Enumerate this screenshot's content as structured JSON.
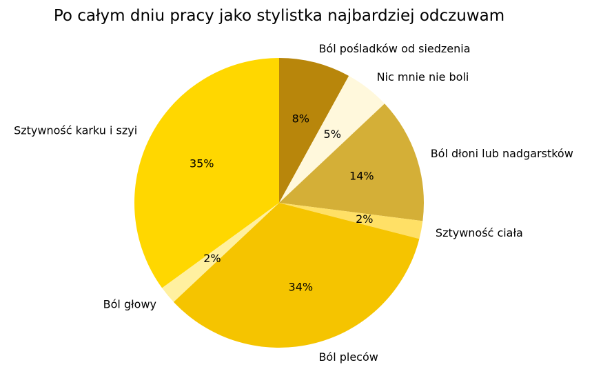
{
  "chart_data": {
    "type": "pie",
    "title": "Po całym dniu pracy jako stylistka najbardziej odczuwam",
    "start": "top",
    "direction": "clockwise",
    "slices": [
      {
        "label": "Ból pośladków od siedzenia",
        "value": 8,
        "pct_label": "8%",
        "color": "#B8860B"
      },
      {
        "label": "Nic mnie nie boli",
        "value": 5,
        "pct_label": "5%",
        "color": "#FFF8DC"
      },
      {
        "label": "Ból dłoni lub nadgarstków",
        "value": 14,
        "pct_label": "14%",
        "color": "#D4AF37"
      },
      {
        "label": "Sztywność ciała",
        "value": 2,
        "pct_label": "2%",
        "color": "#FFE066"
      },
      {
        "label": "Ból pleców",
        "value": 34,
        "pct_label": "34%",
        "color": "#F5C400"
      },
      {
        "label": "Ból głowy",
        "value": 2,
        "pct_label": "2%",
        "color": "#FFF0A0"
      },
      {
        "label": "Sztywność karku i szyi",
        "value": 35,
        "pct_label": "35%",
        "color": "#FFD700"
      }
    ]
  }
}
